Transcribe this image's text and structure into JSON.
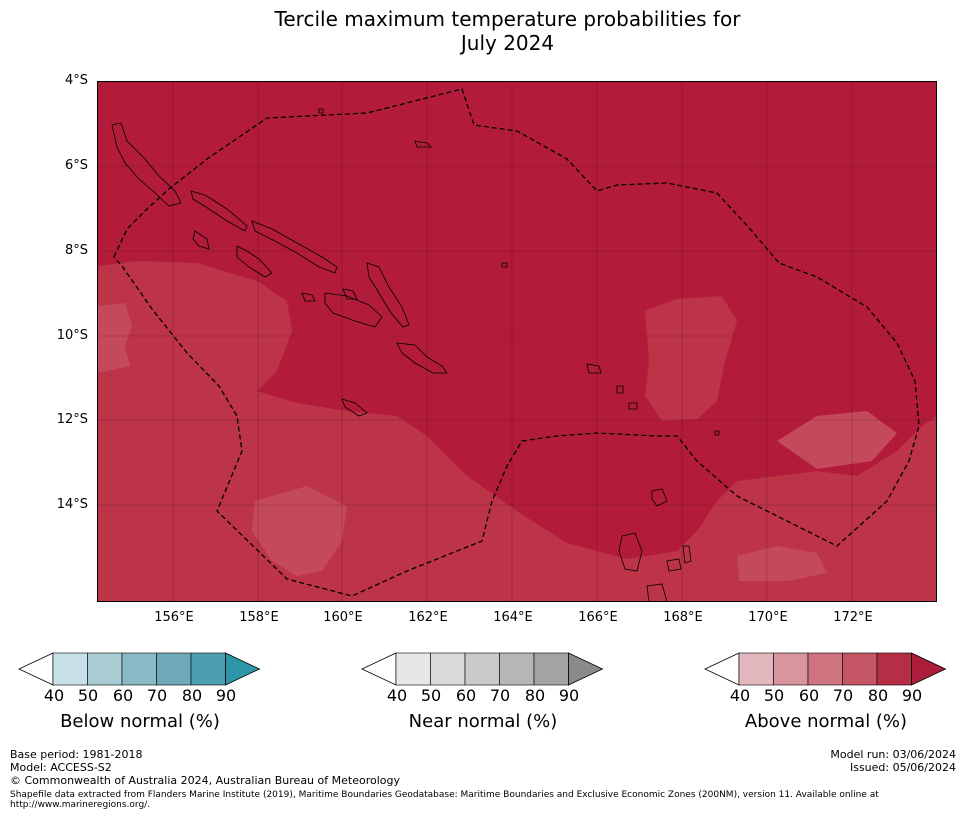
{
  "title_line1": "Tercile maximum temperature probabilities for",
  "title_line2": "July 2024",
  "lat_labels": [
    "4°S",
    "6°S",
    "8°S",
    "10°S",
    "12°S",
    "14°S"
  ],
  "lon_labels": [
    "156°E",
    "158°E",
    "160°E",
    "162°E",
    "164°E",
    "166°E",
    "168°E",
    "170°E",
    "172°E"
  ],
  "colorbars": [
    {
      "title": "Below normal (%)",
      "ticks": [
        "40",
        "50",
        "60",
        "70",
        "80",
        "90"
      ],
      "colors": [
        "#c8e0e7",
        "#a9cbd3",
        "#8cb9c6",
        "#6eaab8",
        "#4c9faf",
        "#2e95a8"
      ]
    },
    {
      "title": "Near normal (%)",
      "ticks": [
        "40",
        "50",
        "60",
        "70",
        "80",
        "90"
      ],
      "colors": [
        "#e7e7e7",
        "#d9d9d9",
        "#c9c9c9",
        "#b6b6b6",
        "#a3a3a3",
        "#8a8a8a"
      ]
    },
    {
      "title": "Above normal (%)",
      "ticks": [
        "40",
        "50",
        "60",
        "70",
        "80",
        "90"
      ],
      "colors": [
        "#e3b7be",
        "#d8959e",
        "#ce7480",
        "#c45565",
        "#b62d46",
        "#ab1d3a"
      ]
    }
  ],
  "map_colors": {
    "above_80": "#b21c3a",
    "above_70": "#bd3348",
    "above_60": "#c44a5b",
    "land": "#b21c3a",
    "eez_line": "#000000"
  },
  "footer": {
    "base_period": "Base period: 1981-2018",
    "model": "Model: ACCESS-S2",
    "model_run": "Model run: 03/06/2024",
    "issued": "Issued: 05/06/2024",
    "copyright": "© Commonwealth of Australia 2024, Australian Bureau of Meteorology",
    "shapefile_line1": "Shapefile data extracted from Flanders Marine Institute (2019), Maritime Boundaries Geodatabase: Maritime Boundaries and Exclusive Economic Zones (200NM), version 11. Available online at",
    "shapefile_line2": "http://www.marineregions.org/."
  }
}
